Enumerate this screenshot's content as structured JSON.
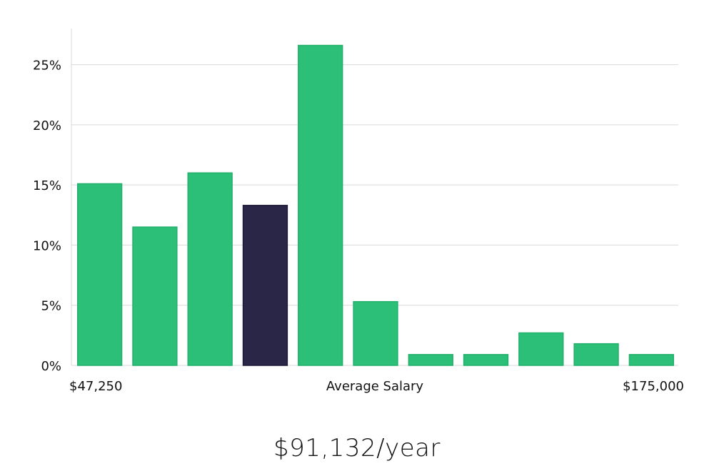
{
  "chart_data": {
    "type": "bar",
    "values": [
      15.1,
      11.5,
      16.0,
      13.3,
      26.6,
      5.3,
      0.9,
      0.9,
      2.7,
      1.8,
      0.9
    ],
    "highlight_index": 3,
    "ylim": [
      0,
      28
    ],
    "yticks": [
      0,
      5,
      10,
      15,
      20,
      25
    ],
    "ytick_suffix": "%",
    "x_left_label": "$47,250",
    "xlabel": "Average Salary",
    "x_right_label": "$175,000",
    "grid": true,
    "colors": {
      "bar": "#2bbf77",
      "bar_stroke": "#22b06c",
      "highlight": "#2a2647",
      "highlight_stroke": "#1d1a38",
      "grid": "#d9d9d9"
    }
  },
  "salary": {
    "value_text": "$91,132/year"
  }
}
